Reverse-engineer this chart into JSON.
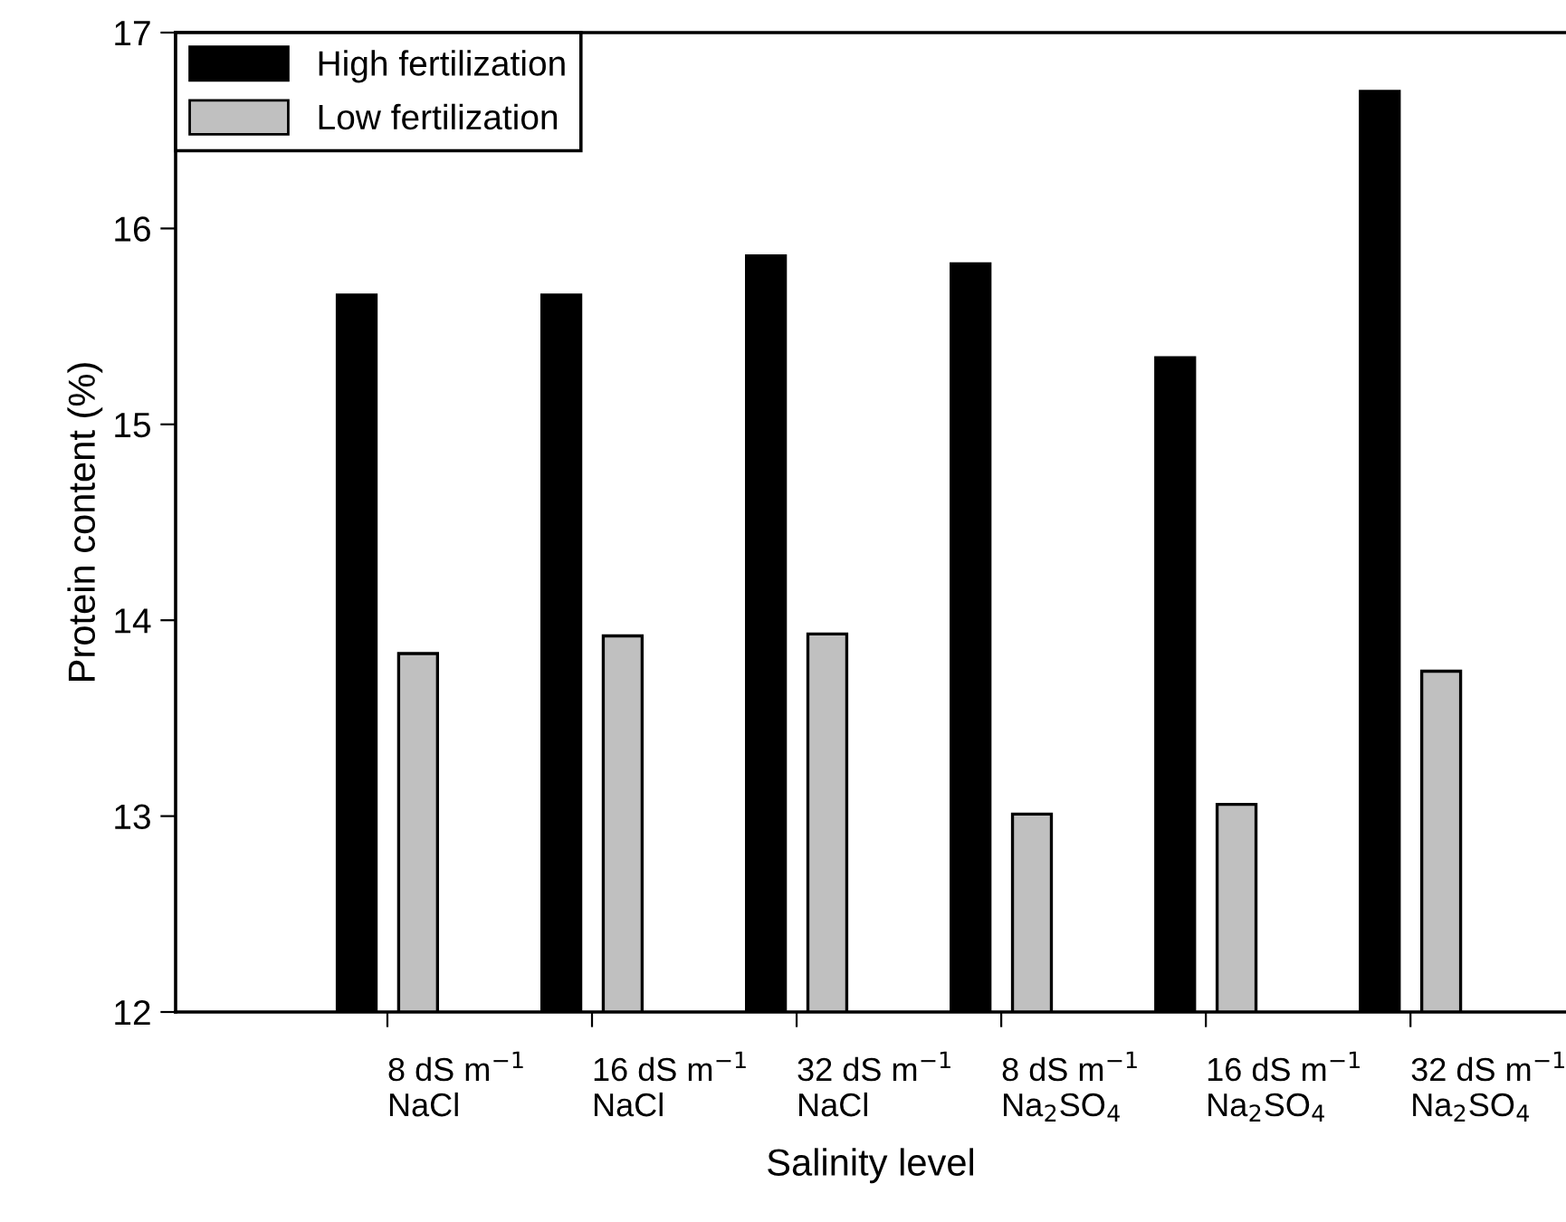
{
  "chart_data": {
    "type": "bar",
    "xlabel": "Salinity level",
    "ylabel": "Protein content (%)",
    "categories": [
      "8 dS m$^{−1}$\nNaCl",
      "16 dS m$^{−1}$\nNaCl",
      "32 dS m$^{−1}$\nNaCl",
      "8 dS m$^{−1}$\nNa$_{2}$SO$_{4}$",
      "16 dS m$^{−1}$\nNa$_{2}$SO$_{4}$",
      "32 dS m$^{−1}$\nNa$_{2}$SO$_{4}$"
    ],
    "series": [
      {
        "name": "High fertilization",
        "color": "#000000",
        "values": [
          15.66,
          15.66,
          15.86,
          15.82,
          15.34,
          16.7
        ]
      },
      {
        "name": "Low fertilization",
        "color": "#c0c0c0",
        "values": [
          13.83,
          13.92,
          13.93,
          13.01,
          13.06,
          13.74
        ]
      }
    ],
    "ylim": [
      12,
      17
    ],
    "yticks": [
      12,
      13,
      14,
      15,
      16,
      17
    ],
    "legend": "top left",
    "grid": false
  }
}
